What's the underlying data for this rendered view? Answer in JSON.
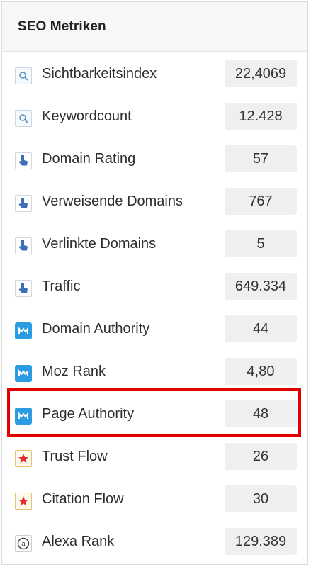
{
  "panel": {
    "title": "SEO Metriken"
  },
  "metrics": [
    {
      "icon": "search-icon",
      "label": "Sichtbarkeitsindex",
      "value": "22,4069"
    },
    {
      "icon": "search-icon",
      "label": "Keywordcount",
      "value": "12.428"
    },
    {
      "icon": "hand-pointer-icon",
      "label": "Domain Rating",
      "value": "57"
    },
    {
      "icon": "hand-pointer-icon",
      "label": "Verweisende Domains",
      "value": "767"
    },
    {
      "icon": "hand-pointer-icon",
      "label": "Verlinkte Domains",
      "value": "5"
    },
    {
      "icon": "hand-pointer-icon",
      "label": "Traffic",
      "value": "649.334"
    },
    {
      "icon": "moz-icon",
      "label": "Domain Authority",
      "value": "44"
    },
    {
      "icon": "moz-icon",
      "label": "Moz Rank",
      "value": "4,80"
    },
    {
      "icon": "moz-icon",
      "label": "Page Authority",
      "value": "48"
    },
    {
      "icon": "star-icon",
      "label": "Trust Flow",
      "value": "26"
    },
    {
      "icon": "star-icon",
      "label": "Citation Flow",
      "value": "30"
    },
    {
      "icon": "alexa-icon",
      "label": "Alexa Rank",
      "value": "129.389"
    }
  ],
  "colors": {
    "highlight": "#e30000",
    "value_bg": "#eeeff1",
    "moz": "#2b9ce2",
    "star": "#e52b2b",
    "hand": "#3b6fb6",
    "search": "#5a8fc7"
  }
}
